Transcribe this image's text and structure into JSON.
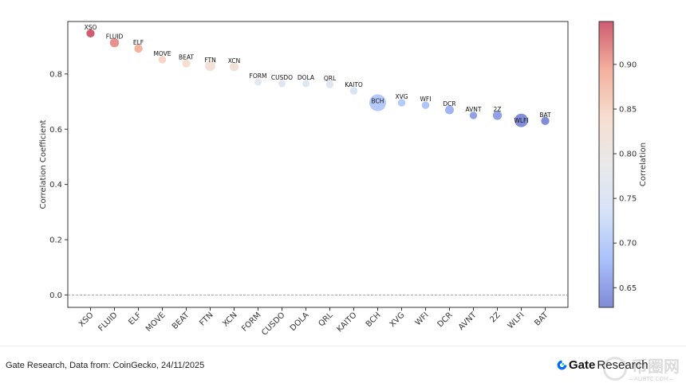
{
  "chart_data": {
    "type": "scatter",
    "title": "",
    "xlabel": "",
    "ylabel": "Correlation Coefficient",
    "ylim": [
      -0.045,
      0.99
    ],
    "yticks": [
      0.0,
      0.2,
      0.4,
      0.6,
      0.8
    ],
    "ytick_labels": [
      "0.0",
      "0.2",
      "0.4",
      "0.6",
      "0.8"
    ],
    "grid": false,
    "reference_line": {
      "y": 0.0,
      "style": "dashed",
      "color": "#888888"
    },
    "categories": [
      "XSO",
      "FLUID",
      "ELF",
      "MOVE",
      "BEAT",
      "FTN",
      "XCN",
      "FORM",
      "CUSDO",
      "DOLA",
      "QRL",
      "KAITO",
      "BCH",
      "XVG",
      "WFI",
      "DCR",
      "AVNT",
      "2Z",
      "WLFI",
      "BAT"
    ],
    "values": [
      0.947,
      0.913,
      0.892,
      0.852,
      0.838,
      0.829,
      0.826,
      0.771,
      0.765,
      0.765,
      0.762,
      0.739,
      0.696,
      0.696,
      0.687,
      0.67,
      0.65,
      0.65,
      0.632,
      0.63
    ],
    "relative_size": [
      1.3,
      1.6,
      1.3,
      1.1,
      1.2,
      2.0,
      1.5,
      1.0,
      1.0,
      1.0,
      1.1,
      1.1,
      5.5,
      1.1,
      1.1,
      1.5,
      1.1,
      1.6,
      3.5,
      1.3
    ],
    "colorbar": {
      "label": "Correlation",
      "range": [
        0.628,
        0.948
      ],
      "ticks": [
        0.65,
        0.7,
        0.75,
        0.8,
        0.85,
        0.9
      ],
      "tick_labels": [
        "0.65",
        "0.70",
        "0.75",
        "0.80",
        "0.85",
        "0.90"
      ],
      "colormap": "coolwarm",
      "colormap_stops": [
        "#3b4cc0",
        "#7b9ff9",
        "#c0d4f5",
        "#dddddd",
        "#f2cbb7",
        "#ee8468",
        "#b40426"
      ],
      "alpha": 0.65
    }
  },
  "footer": {
    "source": "Gate Research, Data from: CoinGecko, 24/11/2025",
    "brand_name": "Gate",
    "brand_sub": "Research",
    "brand_color": "#0068ff",
    "watermark": "币圈网",
    "watermark_sub": "—ALIBTC.COM—"
  }
}
